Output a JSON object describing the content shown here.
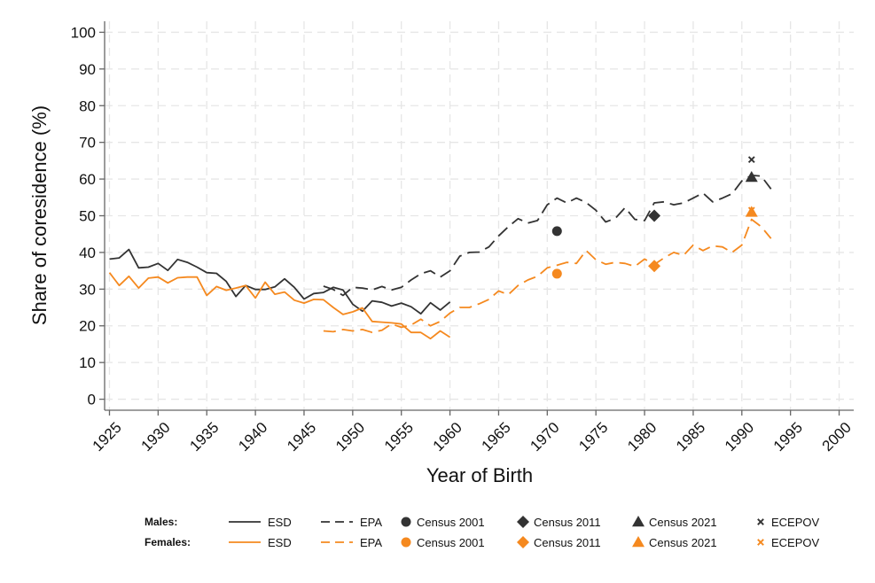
{
  "chart_data": {
    "type": "line",
    "xlabel": "Year of Birth",
    "ylabel": "Share of coresidence (%)",
    "xlim": [
      1924.5,
      2001.5
    ],
    "ylim": [
      -3,
      103
    ],
    "xticks": [
      1925,
      1930,
      1935,
      1940,
      1945,
      1950,
      1955,
      1960,
      1965,
      1970,
      1975,
      1980,
      1985,
      1990,
      1995,
      2000
    ],
    "yticks": [
      0,
      10,
      20,
      30,
      40,
      50,
      60,
      70,
      80,
      90,
      100
    ],
    "grid": true,
    "colors": {
      "males": "#333333",
      "females": "#f5891f",
      "grid": "#e6e6e6",
      "axis": "#666666"
    },
    "legend": {
      "placement": "bottom",
      "rows": [
        {
          "label": "Males:",
          "group": "males"
        },
        {
          "label": "Females:",
          "group": "females"
        }
      ],
      "entries": [
        {
          "label": "ESD",
          "kind": "solid"
        },
        {
          "label": "EPA",
          "kind": "dash"
        },
        {
          "label": "Census 2001",
          "kind": "circle"
        },
        {
          "label": "Census 2011",
          "kind": "diamond"
        },
        {
          "label": "Census 2021",
          "kind": "triangle"
        },
        {
          "label": "ECEPOV",
          "kind": "x"
        }
      ]
    },
    "series": [
      {
        "name": "Males ESD",
        "group": "males",
        "style": "solid",
        "x": [
          1925,
          1926,
          1927,
          1928,
          1929,
          1930,
          1931,
          1932,
          1933,
          1934,
          1935,
          1936,
          1937,
          1938,
          1939,
          1940,
          1941,
          1942,
          1943,
          1944,
          1945,
          1946,
          1947,
          1948,
          1949,
          1950,
          1951,
          1952,
          1953,
          1954,
          1955,
          1956,
          1957,
          1958,
          1959,
          1960
        ],
        "y": [
          38.2,
          38.5,
          40.8,
          35.8,
          36,
          37,
          35.1,
          38.1,
          37.3,
          36,
          34.5,
          34.3,
          32.1,
          28,
          31,
          29.9,
          29.9,
          30.6,
          32.8,
          30.5,
          27.3,
          28.8,
          29.1,
          30.5,
          29.8,
          25.9,
          24,
          26.8,
          26.4,
          25.4,
          26.2,
          25.2,
          23.3,
          26.3,
          24.3,
          26.5
        ]
      },
      {
        "name": "Females ESD",
        "group": "females",
        "style": "solid",
        "x": [
          1925,
          1926,
          1927,
          1928,
          1929,
          1930,
          1931,
          1932,
          1933,
          1934,
          1935,
          1936,
          1937,
          1938,
          1939,
          1940,
          1941,
          1942,
          1943,
          1944,
          1945,
          1946,
          1947,
          1948,
          1949,
          1950,
          1951,
          1952,
          1953,
          1954,
          1955,
          1956,
          1957,
          1958,
          1959,
          1960
        ],
        "y": [
          34.5,
          31,
          33.5,
          30.3,
          33,
          33.3,
          31.7,
          33.1,
          33.3,
          33.3,
          28.3,
          30.7,
          29.7,
          30.3,
          31,
          27.6,
          31.9,
          28.6,
          29.2,
          27,
          26.2,
          27.2,
          27.1,
          25,
          23.1,
          23.8,
          24.9,
          21.2,
          21,
          20.8,
          20.5,
          18.2,
          18.2,
          16.5,
          18.6,
          16.9
        ]
      },
      {
        "name": "Males EPA",
        "group": "males",
        "style": "dash",
        "x": [
          1947,
          1948,
          1949,
          1950,
          1951,
          1952,
          1953,
          1954,
          1955,
          1956,
          1957,
          1958,
          1959,
          1960,
          1961,
          1962,
          1963,
          1964,
          1965,
          1966,
          1967,
          1968,
          1969,
          1970,
          1971,
          1972,
          1973,
          1974,
          1975,
          1976,
          1977,
          1978,
          1979,
          1980,
          1981,
          1982,
          1983,
          1984,
          1985,
          1986,
          1987,
          1988,
          1989,
          1990,
          1991,
          1992,
          1993
        ],
        "y": [
          30.8,
          29.9,
          28.3,
          30.5,
          30.3,
          29.8,
          30.7,
          29.8,
          30.5,
          32.5,
          34.2,
          35,
          33.3,
          35,
          39,
          40,
          40.1,
          41.5,
          44.5,
          47,
          49.2,
          48,
          48.7,
          53,
          54.8,
          53.5,
          54.8,
          53.6,
          51.5,
          48.3,
          49.3,
          52.2,
          49,
          48.7,
          53.5,
          53.8,
          53,
          53.5,
          54.8,
          56.2,
          53.8,
          54.8,
          56,
          59.5,
          61,
          60.8,
          57.3
        ]
      },
      {
        "name": "Females EPA",
        "group": "females",
        "style": "dash",
        "x": [
          1947,
          1948,
          1949,
          1950,
          1951,
          1952,
          1953,
          1954,
          1955,
          1956,
          1957,
          1958,
          1959,
          1960,
          1961,
          1962,
          1963,
          1964,
          1965,
          1966,
          1967,
          1968,
          1969,
          1970,
          1971,
          1972,
          1973,
          1974,
          1975,
          1976,
          1977,
          1978,
          1979,
          1980,
          1981,
          1982,
          1983,
          1984,
          1985,
          1986,
          1987,
          1988,
          1989,
          1990,
          1991,
          1992,
          1993
        ],
        "y": [
          18.6,
          18.4,
          19,
          18.6,
          19,
          18.2,
          18.8,
          20.5,
          19.6,
          20.2,
          21.8,
          20,
          21.2,
          23.5,
          25,
          25,
          26,
          27.2,
          29.5,
          28.5,
          31,
          32.5,
          33.5,
          35.8,
          36.5,
          37.3,
          37,
          40.5,
          38,
          36.8,
          37.3,
          37,
          36.2,
          38.2,
          36.7,
          38.5,
          40,
          39.2,
          42,
          40.5,
          41.8,
          41.5,
          40,
          42,
          49,
          47,
          43.8
        ]
      }
    ],
    "markers": [
      {
        "name": "Males Census 2001",
        "group": "males",
        "kind": "circle",
        "x": 1971,
        "y": 45.8
      },
      {
        "name": "Males Census 2011",
        "group": "males",
        "kind": "diamond",
        "x": 1981,
        "y": 50
      },
      {
        "name": "Males Census 2021",
        "group": "males",
        "kind": "triangle",
        "x": 1991,
        "y": 60.5
      },
      {
        "name": "Males ECEPOV",
        "group": "males",
        "kind": "x",
        "x": 1991,
        "y": 65.3
      },
      {
        "name": "Females Census 2001",
        "group": "females",
        "kind": "circle",
        "x": 1971,
        "y": 34.2
      },
      {
        "name": "Females Census 2011",
        "group": "females",
        "kind": "diamond",
        "x": 1981,
        "y": 36.3
      },
      {
        "name": "Females Census 2021",
        "group": "females",
        "kind": "triangle",
        "x": 1991,
        "y": 51
      },
      {
        "name": "Females ECEPOV",
        "group": "females",
        "kind": "x",
        "x": 1991,
        "y": 51.5
      }
    ]
  }
}
